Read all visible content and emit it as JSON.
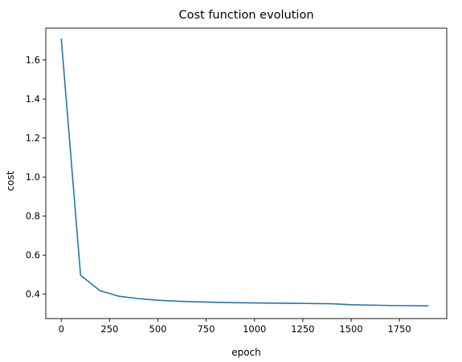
{
  "chart_data": {
    "type": "line",
    "title": "Cost function evolution",
    "xlabel": "epoch",
    "ylabel": "cost",
    "xlim": [
      -80,
      1995
    ],
    "ylim": [
      0.275,
      1.763
    ],
    "xticks": [
      0,
      250,
      500,
      750,
      1000,
      1250,
      1500,
      1750
    ],
    "yticks": [
      0.4,
      0.6,
      0.8,
      1.0,
      1.2,
      1.4,
      1.6
    ],
    "ytick_labels": [
      "0.4",
      "0.6",
      "0.8",
      "1.0",
      "1.2",
      "1.4",
      "1.6"
    ],
    "grid": false,
    "series": [
      {
        "color": "#1f77b4",
        "x": [
          0,
          100,
          200,
          300,
          400,
          500,
          600,
          700,
          800,
          900,
          1000,
          1100,
          1200,
          1300,
          1400,
          1500,
          1600,
          1700,
          1800,
          1900
        ],
        "y": [
          1.71,
          0.497,
          0.418,
          0.389,
          0.377,
          0.369,
          0.364,
          0.361,
          0.358,
          0.356,
          0.355,
          0.354,
          0.353,
          0.352,
          0.351,
          0.346,
          0.344,
          0.342,
          0.341,
          0.34
        ]
      }
    ]
  }
}
